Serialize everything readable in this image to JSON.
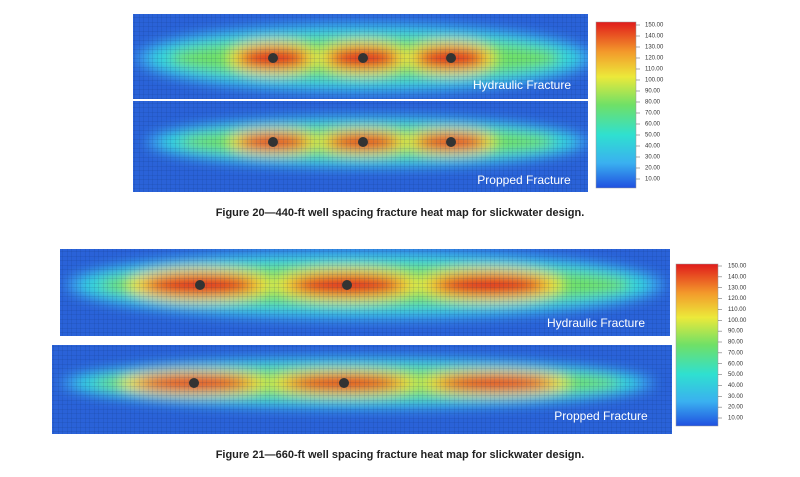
{
  "figures": [
    {
      "panels": [
        {
          "label": "Hydraulic Fracture"
        },
        {
          "label": "Propped Fracture"
        }
      ],
      "colorbar": {
        "ticks": [
          "150.00",
          "140.00",
          "130.00",
          "120.00",
          "110.00",
          "100.00",
          "90.00",
          "80.00",
          "70.00",
          "60.00",
          "50.00",
          "40.00",
          "30.00",
          "20.00",
          "10.00"
        ]
      },
      "caption": "Figure 20—440-ft well spacing fracture heat map for slickwater design."
    },
    {
      "panels": [
        {
          "label": "Hydraulic Fracture"
        },
        {
          "label": "Propped Fracture"
        }
      ],
      "colorbar": {
        "ticks": [
          "150.00",
          "140.00",
          "130.00",
          "120.00",
          "110.00",
          "100.00",
          "90.00",
          "80.00",
          "70.00",
          "60.00",
          "50.00",
          "40.00",
          "30.00",
          "20.00",
          "10.00"
        ]
      },
      "caption": "Figure 21—660-ft well spacing fracture heat map for slickwater design."
    }
  ]
}
